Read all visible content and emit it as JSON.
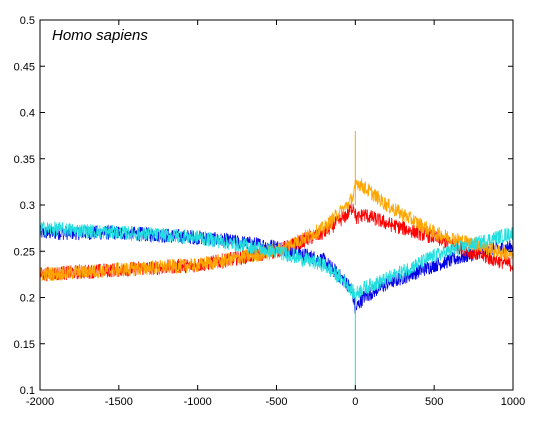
{
  "chart_data": {
    "type": "line",
    "title": "Homo sapiens",
    "xlabel": "",
    "ylabel": "",
    "xlim": [
      -2000,
      1000
    ],
    "ylim": [
      0.1,
      0.5
    ],
    "x_ticks": [
      -2000,
      -1500,
      -1000,
      -500,
      0,
      500,
      1000
    ],
    "y_ticks": [
      0.1,
      0.15,
      0.2,
      0.25,
      0.3,
      0.35,
      0.4,
      0.45,
      0.5
    ],
    "x_tick_labels": [
      "-2000",
      "-1500",
      "-1000",
      "-500",
      "0",
      "500",
      "1000"
    ],
    "y_tick_labels": [
      "0.1",
      "0.15",
      "0.2",
      "0.25",
      "0.3",
      "0.35",
      "0.4",
      "0.45",
      "0.5"
    ],
    "grid": false,
    "legend": "none",
    "series": [
      {
        "color": "#0000e6",
        "noise": 0.008,
        "x": [
          -2000,
          -1500,
          -1000,
          -500,
          -200,
          -50,
          -10,
          0,
          10,
          50,
          200,
          500,
          800,
          1000
        ],
        "y": [
          0.27,
          0.27,
          0.265,
          0.255,
          0.24,
          0.215,
          0.2,
          0.185,
          0.19,
          0.2,
          0.215,
          0.235,
          0.25,
          0.255
        ]
      },
      {
        "color": "#ff0000",
        "noise": 0.008,
        "x": [
          -2000,
          -1500,
          -1000,
          -500,
          -200,
          -50,
          -10,
          0,
          10,
          50,
          200,
          500,
          800,
          1000
        ],
        "y": [
          0.225,
          0.23,
          0.235,
          0.25,
          0.27,
          0.29,
          0.3,
          0.29,
          0.285,
          0.29,
          0.28,
          0.265,
          0.245,
          0.235
        ]
      },
      {
        "color": "#ffa500",
        "noise": 0.008,
        "x": [
          -2000,
          -1500,
          -1000,
          -500,
          -200,
          -50,
          -10,
          0,
          10,
          50,
          200,
          500,
          800,
          1000
        ],
        "y": [
          0.225,
          0.23,
          0.235,
          0.25,
          0.275,
          0.3,
          0.31,
          0.32,
          0.325,
          0.32,
          0.3,
          0.27,
          0.255,
          0.245
        ]
      },
      {
        "color": "#22dede",
        "noise": 0.008,
        "x": [
          -2000,
          -1500,
          -1000,
          -500,
          -200,
          -50,
          -10,
          0,
          10,
          50,
          200,
          500,
          800,
          1000
        ],
        "y": [
          0.275,
          0.27,
          0.265,
          0.25,
          0.235,
          0.215,
          0.205,
          0.2,
          0.205,
          0.21,
          0.22,
          0.245,
          0.26,
          0.27
        ]
      }
    ],
    "annotations": [
      {
        "color": "#ffa500",
        "x": 0,
        "y0": 0.3,
        "y1": 0.38
      },
      {
        "color": "#22dede",
        "x": 0,
        "y0": 0.2,
        "y1": 0.1
      }
    ]
  }
}
